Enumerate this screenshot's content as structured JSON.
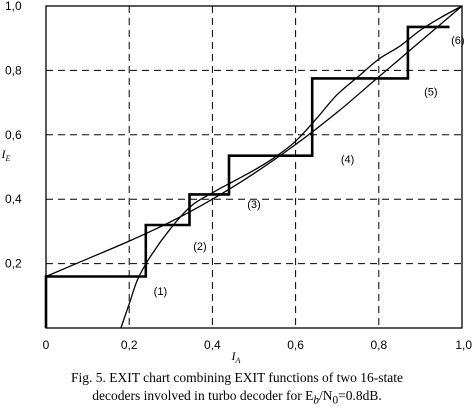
{
  "chart_data": {
    "type": "line",
    "xlabel": "I_A",
    "ylabel": "I_E",
    "xlim": [
      0,
      1
    ],
    "ylim": [
      0,
      1
    ],
    "x_ticks": [
      "0",
      "0,2",
      "0,4",
      "0,6",
      "0,8",
      "1,0"
    ],
    "y_ticks": [
      "0,2",
      "0,4",
      "0,6",
      "0,8",
      "1,0"
    ],
    "grid": true,
    "series": [
      {
        "points": [
          [
            0,
            0.16
          ],
          [
            0.1,
            0.215
          ],
          [
            0.2,
            0.27
          ],
          [
            0.3,
            0.33
          ],
          [
            0.4,
            0.4
          ],
          [
            0.5,
            0.48
          ],
          [
            0.6,
            0.57
          ],
          [
            0.7,
            0.67
          ],
          [
            0.8,
            0.78
          ],
          [
            0.9,
            0.89
          ],
          [
            1.0,
            1.0
          ]
        ]
      },
      {
        "points": [
          [
            0.18,
            0.0
          ],
          [
            0.2,
            0.075
          ],
          [
            0.22,
            0.15
          ],
          [
            0.25,
            0.22
          ],
          [
            0.3,
            0.31
          ],
          [
            0.35,
            0.38
          ],
          [
            0.4,
            0.42
          ],
          [
            0.45,
            0.455
          ],
          [
            0.5,
            0.49
          ],
          [
            0.55,
            0.53
          ],
          [
            0.6,
            0.58
          ],
          [
            0.65,
            0.65
          ],
          [
            0.7,
            0.725
          ],
          [
            0.75,
            0.78
          ],
          [
            0.8,
            0.835
          ],
          [
            0.85,
            0.875
          ],
          [
            0.9,
            0.925
          ],
          [
            0.95,
            0.965
          ],
          [
            1.0,
            1.0
          ]
        ]
      },
      {
        "points": [
          [
            0,
            0
          ],
          [
            0,
            0.16
          ],
          [
            0.24,
            0.16
          ],
          [
            0.24,
            0.32
          ],
          [
            0.345,
            0.32
          ],
          [
            0.345,
            0.415
          ],
          [
            0.44,
            0.415
          ],
          [
            0.44,
            0.535
          ],
          [
            0.64,
            0.535
          ],
          [
            0.64,
            0.775
          ],
          [
            0.87,
            0.775
          ],
          [
            0.87,
            0.935
          ],
          [
            0.97,
            0.935
          ]
        ]
      }
    ],
    "annotations": [
      {
        "text": "(1)",
        "x": 0.275,
        "y": 0.115
      },
      {
        "text": "(2)",
        "x": 0.37,
        "y": 0.255
      },
      {
        "text": "(3)",
        "x": 0.5,
        "y": 0.385
      },
      {
        "text": "(4)",
        "x": 0.725,
        "y": 0.525
      },
      {
        "text": "(5)",
        "x": 0.925,
        "y": 0.735
      },
      {
        "text": "(6)",
        "x": 0.99,
        "y": 0.895
      }
    ]
  },
  "caption": {
    "line1": "Fig. 5. EXIT chart combining EXIT functions of two 16-state",
    "line2": "decoders involved in turbo decoder for Eb/N0=0.8dB."
  }
}
